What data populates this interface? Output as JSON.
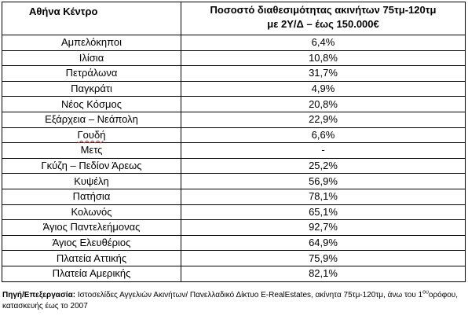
{
  "table": {
    "header_area": "Αθήνα Κέντρο",
    "header_pct_line1": "Ποσοστό διαθεσιμότητας ακινήτων 75τμ-120τμ",
    "header_pct_line2": "με 2Υ/Δ – έως 150.000€",
    "rows": [
      {
        "area": "Αμπελόκηποι",
        "pct": "6,4%"
      },
      {
        "area": "Ιλίσια",
        "pct": "10,8%"
      },
      {
        "area": "Πετράλωνα",
        "pct": "31,7%"
      },
      {
        "area": "Παγκράτι",
        "pct": "4,9%"
      },
      {
        "area": "Νέος Κόσμος",
        "pct": "20,8%"
      },
      {
        "area": "Εξάρχεια – Νεάπολη",
        "pct": "22,9%"
      },
      {
        "area": "Γουδή",
        "pct": "6,6%"
      },
      {
        "area": "Μετς",
        "pct": "-"
      },
      {
        "area": "Γκύζη – Πεδίον Άρεως",
        "pct": "25,2%"
      },
      {
        "area": "Κυψέλη",
        "pct": "56,9%"
      },
      {
        "area": "Πατήσια",
        "pct": "78,1%"
      },
      {
        "area": "Κολωνός",
        "pct": "65,1%"
      },
      {
        "area": "Άγιος Παντελεήμονας",
        "pct": "92,7%"
      },
      {
        "area": "Άγιος Ελευθέριος",
        "pct": "64,9%"
      },
      {
        "area": "Πλατεία Αττικής",
        "pct": "75,9%"
      },
      {
        "area": "Πλατεία Αμερικής",
        "pct": "82,1%"
      }
    ]
  },
  "source": {
    "label": "Πηγή/Επεξεργασία:",
    "text": " Ιστοσελίδες Αγγελιών Ακινήτων/ Πανελλαδικό Δίκτυο E-RealEstates, ακίνητα 75τμ-120τμ,  άνω του 1",
    "sup": "ου",
    "text2": "ορόφου, κατασκευής έως το 2007"
  }
}
